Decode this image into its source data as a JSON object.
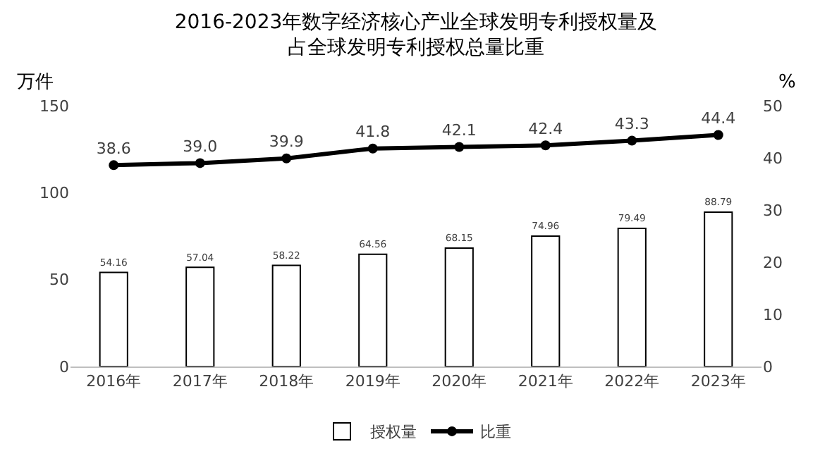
{
  "chart_data": {
    "type": "bar",
    "title": "2016-2023年数字经济核心产业全球发明专利授权量及占全球发明专利授权总量比重",
    "ylabel": "万件",
    "y2label": "%",
    "categories": [
      "2016年",
      "2017年",
      "2018年",
      "2019年",
      "2020年",
      "2021年",
      "2022年",
      "2023年"
    ],
    "series": [
      {
        "name": "授权量",
        "color": "#ffffff",
        "values": [
          54.16,
          57.04,
          58.22,
          64.56,
          68.15,
          74.96,
          79.49,
          88.79
        ]
      },
      {
        "name": "比重",
        "type": "line",
        "axis": "y2",
        "color": "#000000",
        "marker": "circle",
        "values": [
          38.6,
          39.0,
          39.9,
          41.8,
          42.1,
          42.4,
          43.3,
          44.4
        ],
        "value_labels": [
          "38.6",
          "39.0",
          "39.9",
          "41.8",
          "42.1",
          "42.4",
          "43.3",
          "44.4"
        ]
      }
    ],
    "ylim": [
      0,
      150
    ],
    "yticks": [
      0,
      50,
      100,
      150
    ],
    "y2lim": [
      0,
      50
    ],
    "y2ticks": [
      0,
      10,
      20,
      30,
      40,
      50
    ],
    "data_labels": true,
    "legend": "bottom"
  }
}
